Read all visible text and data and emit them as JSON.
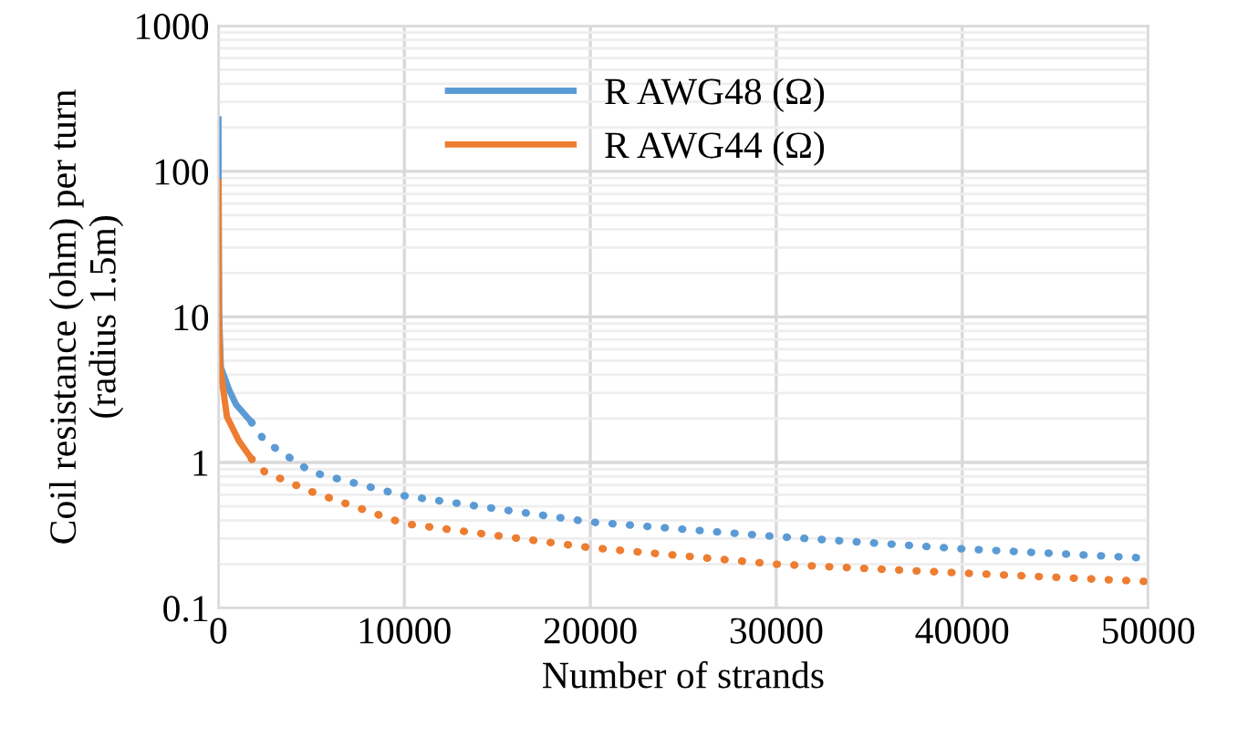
{
  "chart_data": {
    "type": "line",
    "xlabel": "Number of strands",
    "ylabel": "Coil resistance (ohm) per turn\n(radius 1.5m)",
    "log": "y",
    "xlim": [
      0,
      50000
    ],
    "xticks": [
      0,
      10000,
      20000,
      30000,
      40000,
      50000
    ],
    "ylim": [
      0.1,
      1000
    ],
    "yticks": [
      0.1,
      1,
      10,
      100,
      1000
    ],
    "grid": true,
    "legend": "top",
    "marker": "none",
    "line_style": "solid",
    "series": [
      {
        "name": "R AWG48 (Ω)",
        "color": "#5b9bd5",
        "x": [
          1,
          10,
          40,
          130,
          600,
          950,
          1780
        ],
        "values": [
          227,
          82,
          10,
          4.5,
          3.1,
          2.5,
          1.89
        ]
      },
      {
        "name": "R AWG44 (Ω)",
        "color": "#ed7d31",
        "x": [
          1,
          5,
          20,
          100,
          460,
          1100,
          1780
        ],
        "values": [
          85,
          40,
          10,
          4.5,
          2.06,
          1.41,
          1.06
        ]
      },
      {
        "color": "#5b9bd5",
        "line_style": "dotted",
        "x": [
          1780,
          2500,
          5000,
          10000,
          20000,
          30000,
          40000,
          50000
        ],
        "values": [
          1.89,
          1.4,
          0.86,
          0.59,
          0.39,
          0.31,
          0.255,
          0.22
        ]
      },
      {
        "color": "#ed7d31",
        "line_style": "dotted",
        "x": [
          1780,
          2500,
          5000,
          10000,
          20000,
          30000,
          40000,
          50000
        ],
        "values": [
          1.06,
          0.86,
          0.63,
          0.38,
          0.26,
          0.2,
          0.174,
          0.152
        ]
      }
    ]
  }
}
